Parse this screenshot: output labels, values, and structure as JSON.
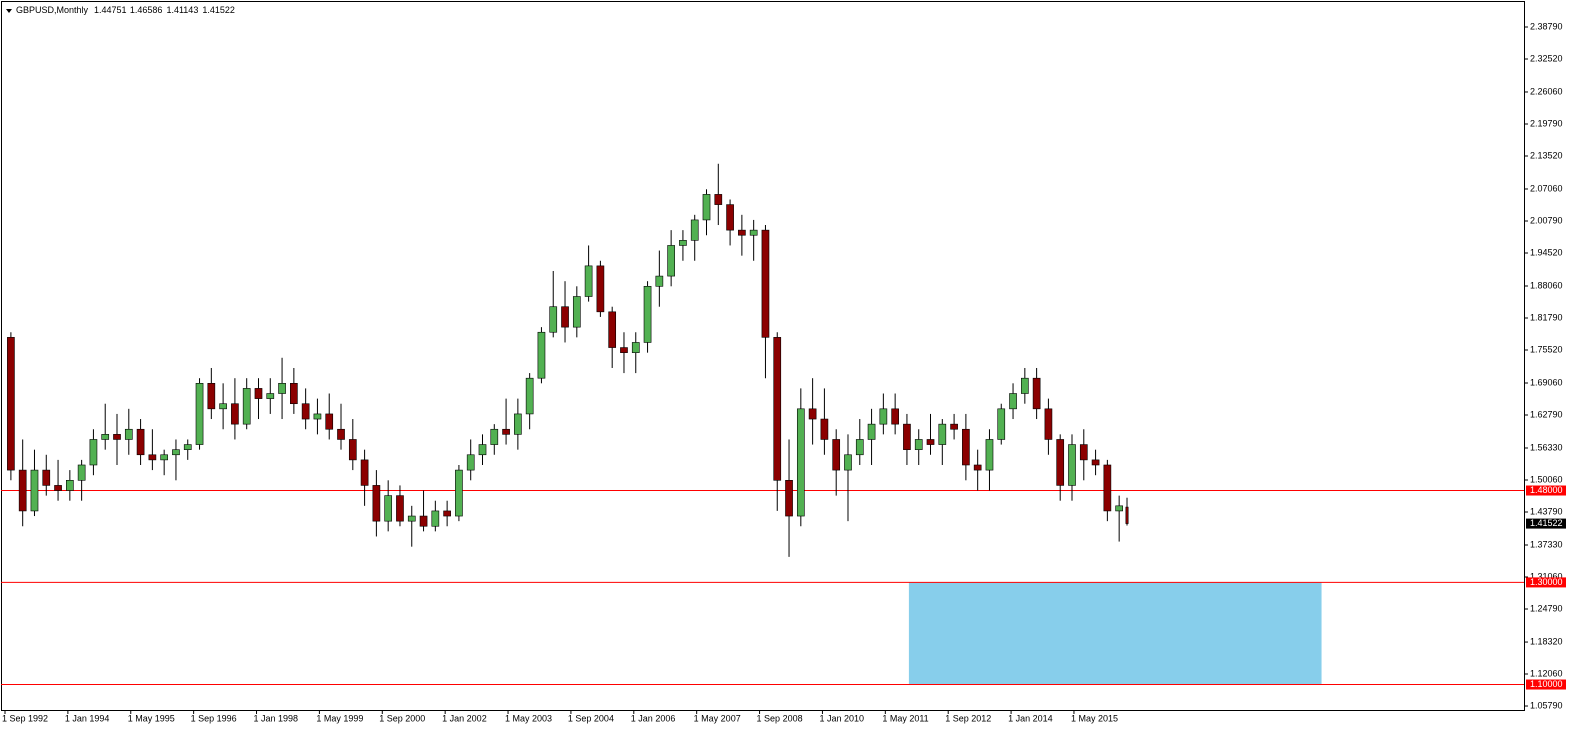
{
  "chart_data": {
    "type": "candlestick",
    "title": "GBPUSD,Monthly",
    "x": [
      "1992-09",
      "1992-12",
      "1993-03",
      "1993-06",
      "1993-09",
      "1993-12",
      "1994-03",
      "1994-06",
      "1994-09",
      "1994-12",
      "1995-03",
      "1995-06",
      "1995-09",
      "1995-12",
      "1996-03",
      "1996-06",
      "1996-09",
      "1996-12",
      "1997-03",
      "1997-06",
      "1997-09",
      "1997-12",
      "1998-03",
      "1998-06",
      "1998-09",
      "1998-12",
      "1999-03",
      "1999-06",
      "1999-09",
      "1999-12",
      "2000-03",
      "2000-06",
      "2000-09",
      "2000-12",
      "2001-03",
      "2001-06",
      "2001-09",
      "2001-12",
      "2002-03",
      "2002-06",
      "2002-09",
      "2002-12",
      "2003-03",
      "2003-06",
      "2003-09",
      "2003-12",
      "2004-03",
      "2004-06",
      "2004-09",
      "2004-12",
      "2005-03",
      "2005-06",
      "2005-09",
      "2005-12",
      "2006-03",
      "2006-06",
      "2006-09",
      "2006-12",
      "2007-03",
      "2007-06",
      "2007-09",
      "2007-12",
      "2008-03",
      "2008-06",
      "2008-09",
      "2008-12",
      "2009-03",
      "2009-06",
      "2009-09",
      "2009-12",
      "2010-03",
      "2010-06",
      "2010-09",
      "2010-12",
      "2011-03",
      "2011-06",
      "2011-09",
      "2011-12",
      "2012-03",
      "2012-06",
      "2012-09",
      "2012-12",
      "2013-03",
      "2013-06",
      "2013-09",
      "2013-12",
      "2014-03",
      "2014-06",
      "2014-09",
      "2014-12",
      "2015-03",
      "2015-06",
      "2015-09",
      "2015-12",
      "2016-03",
      "2016-06"
    ],
    "open": [
      1.78,
      1.52,
      1.44,
      1.52,
      1.49,
      1.48,
      1.5,
      1.53,
      1.58,
      1.59,
      1.58,
      1.6,
      1.55,
      1.54,
      1.55,
      1.56,
      1.57,
      1.69,
      1.64,
      1.65,
      1.61,
      1.68,
      1.66,
      1.67,
      1.69,
      1.65,
      1.62,
      1.63,
      1.6,
      1.58,
      1.54,
      1.49,
      1.42,
      1.47,
      1.42,
      1.43,
      1.41,
      1.44,
      1.43,
      1.52,
      1.55,
      1.57,
      1.6,
      1.59,
      1.63,
      1.7,
      1.79,
      1.84,
      1.8,
      1.86,
      1.92,
      1.83,
      1.76,
      1.75,
      1.77,
      1.88,
      1.9,
      1.96,
      1.97,
      2.01,
      2.06,
      2.04,
      1.99,
      1.98,
      1.99,
      1.78,
      1.5,
      1.43,
      1.64,
      1.62,
      1.58,
      1.52,
      1.55,
      1.58,
      1.61,
      1.64,
      1.61,
      1.56,
      1.58,
      1.57,
      1.61,
      1.6,
      1.53,
      1.52,
      1.58,
      1.64,
      1.67,
      1.7,
      1.64,
      1.58,
      1.49,
      1.57,
      1.54,
      1.53,
      1.44,
      1.44751
    ],
    "high": [
      1.79,
      1.58,
      1.56,
      1.55,
      1.54,
      1.52,
      1.54,
      1.6,
      1.65,
      1.63,
      1.64,
      1.62,
      1.6,
      1.56,
      1.58,
      1.58,
      1.7,
      1.72,
      1.69,
      1.7,
      1.7,
      1.7,
      1.7,
      1.74,
      1.72,
      1.68,
      1.66,
      1.67,
      1.65,
      1.62,
      1.56,
      1.52,
      1.5,
      1.49,
      1.45,
      1.48,
      1.46,
      1.46,
      1.53,
      1.58,
      1.59,
      1.61,
      1.66,
      1.66,
      1.71,
      1.8,
      1.91,
      1.89,
      1.88,
      1.96,
      1.93,
      1.84,
      1.79,
      1.79,
      1.89,
      1.95,
      1.99,
      1.99,
      2.02,
      2.07,
      2.12,
      2.05,
      2.02,
      2.01,
      2.0,
      1.79,
      1.58,
      1.68,
      1.7,
      1.68,
      1.6,
      1.59,
      1.62,
      1.64,
      1.67,
      1.67,
      1.63,
      1.6,
      1.63,
      1.62,
      1.63,
      1.63,
      1.56,
      1.6,
      1.65,
      1.69,
      1.72,
      1.72,
      1.66,
      1.59,
      1.59,
      1.6,
      1.56,
      1.54,
      1.47,
      1.46586
    ],
    "low": [
      1.5,
      1.41,
      1.43,
      1.47,
      1.46,
      1.46,
      1.46,
      1.51,
      1.56,
      1.53,
      1.55,
      1.53,
      1.52,
      1.51,
      1.5,
      1.54,
      1.56,
      1.62,
      1.6,
      1.58,
      1.6,
      1.62,
      1.63,
      1.62,
      1.63,
      1.6,
      1.59,
      1.58,
      1.56,
      1.52,
      1.45,
      1.39,
      1.4,
      1.41,
      1.37,
      1.4,
      1.4,
      1.41,
      1.42,
      1.5,
      1.53,
      1.55,
      1.57,
      1.56,
      1.6,
      1.69,
      1.78,
      1.77,
      1.78,
      1.85,
      1.82,
      1.72,
      1.71,
      1.71,
      1.75,
      1.84,
      1.88,
      1.93,
      1.93,
      1.98,
      2.0,
      1.96,
      1.94,
      1.93,
      1.7,
      1.44,
      1.35,
      1.41,
      1.57,
      1.55,
      1.47,
      1.42,
      1.53,
      1.53,
      1.59,
      1.59,
      1.53,
      1.53,
      1.55,
      1.53,
      1.58,
      1.5,
      1.48,
      1.48,
      1.57,
      1.62,
      1.65,
      1.62,
      1.55,
      1.46,
      1.46,
      1.5,
      1.51,
      1.42,
      1.38,
      1.41143
    ],
    "close": [
      1.52,
      1.44,
      1.52,
      1.49,
      1.48,
      1.5,
      1.53,
      1.58,
      1.59,
      1.58,
      1.6,
      1.55,
      1.54,
      1.55,
      1.56,
      1.57,
      1.69,
      1.64,
      1.65,
      1.61,
      1.68,
      1.66,
      1.67,
      1.69,
      1.65,
      1.62,
      1.63,
      1.6,
      1.58,
      1.54,
      1.49,
      1.42,
      1.47,
      1.42,
      1.43,
      1.41,
      1.44,
      1.43,
      1.52,
      1.55,
      1.57,
      1.6,
      1.59,
      1.63,
      1.7,
      1.79,
      1.84,
      1.8,
      1.86,
      1.92,
      1.83,
      1.76,
      1.75,
      1.77,
      1.88,
      1.9,
      1.96,
      1.97,
      2.01,
      2.06,
      2.04,
      1.99,
      1.98,
      1.99,
      1.78,
      1.5,
      1.43,
      1.64,
      1.62,
      1.58,
      1.52,
      1.55,
      1.58,
      1.61,
      1.64,
      1.61,
      1.56,
      1.58,
      1.57,
      1.61,
      1.6,
      1.53,
      1.52,
      1.58,
      1.64,
      1.67,
      1.7,
      1.64,
      1.58,
      1.49,
      1.57,
      1.54,
      1.53,
      1.44,
      1.45,
      1.41522
    ],
    "up_color": "#52b152",
    "down_color": "#8b0000",
    "ylim": [
      1.0501,
      2.4388
    ],
    "yticks": [
      {
        "value": 2.3879,
        "label": "2.38790"
      },
      {
        "value": 2.3252,
        "label": "2.32520"
      },
      {
        "value": 2.2606,
        "label": "2.26060"
      },
      {
        "value": 2.1979,
        "label": "2.19790"
      },
      {
        "value": 2.1352,
        "label": "2.13520"
      },
      {
        "value": 2.0706,
        "label": "2.07060"
      },
      {
        "value": 2.0079,
        "label": "2.00790"
      },
      {
        "value": 1.9452,
        "label": "1.94520"
      },
      {
        "value": 1.8806,
        "label": "1.88060"
      },
      {
        "value": 1.8179,
        "label": "1.81790"
      },
      {
        "value": 1.7552,
        "label": "1.75520"
      },
      {
        "value": 1.6906,
        "label": "1.69060"
      },
      {
        "value": 1.6279,
        "label": "1.62790"
      },
      {
        "value": 1.5633,
        "label": "1.56330"
      },
      {
        "value": 1.5006,
        "label": "1.50060"
      },
      {
        "value": 1.4379,
        "label": "1.43790"
      },
      {
        "value": 1.3733,
        "label": "1.37330"
      },
      {
        "value": 1.3106,
        "label": "1.31060"
      },
      {
        "value": 1.2479,
        "label": "1.24790"
      },
      {
        "value": 1.1832,
        "label": "1.18320"
      },
      {
        "value": 1.1206,
        "label": "1.12060"
      },
      {
        "value": 1.0579,
        "label": "1.05790"
      }
    ],
    "xticks": [
      {
        "value": "1992-09",
        "label": "1 Sep 1992"
      },
      {
        "value": "1994-01",
        "label": "1 Jan 1994"
      },
      {
        "value": "1995-05",
        "label": "1 May 1995"
      },
      {
        "value": "1996-09",
        "label": "1 Sep 1996"
      },
      {
        "value": "1998-01",
        "label": "1 Jan 1998"
      },
      {
        "value": "1999-05",
        "label": "1 May 1999"
      },
      {
        "value": "2000-09",
        "label": "1 Sep 2000"
      },
      {
        "value": "2002-01",
        "label": "1 Jan 2002"
      },
      {
        "value": "2003-05",
        "label": "1 May 2003"
      },
      {
        "value": "2004-09",
        "label": "1 Sep 2004"
      },
      {
        "value": "2006-01",
        "label": "1 Jan 2006"
      },
      {
        "value": "2007-05",
        "label": "1 May 2007"
      },
      {
        "value": "2008-09",
        "label": "1 Sep 2008"
      },
      {
        "value": "2010-01",
        "label": "1 Jan 2010"
      },
      {
        "value": "2011-05",
        "label": "1 May 2011"
      },
      {
        "value": "2012-09",
        "label": "1 Sep 2012"
      },
      {
        "value": "2014-01",
        "label": "1 Jan 2014"
      },
      {
        "value": "2015-05",
        "label": "1 May 2015"
      }
    ],
    "levels": [
      {
        "value": 1.48,
        "label": "1.48000"
      },
      {
        "value": 1.3,
        "label": "1.30000"
      },
      {
        "value": 1.1,
        "label": "1.10000"
      }
    ],
    "level_color": "#ff0000",
    "zone": {
      "x": [
        "2011-11",
        "2020-08"
      ],
      "y": [
        1.3,
        1.1
      ],
      "color": "#87ceeb"
    }
  }
}
